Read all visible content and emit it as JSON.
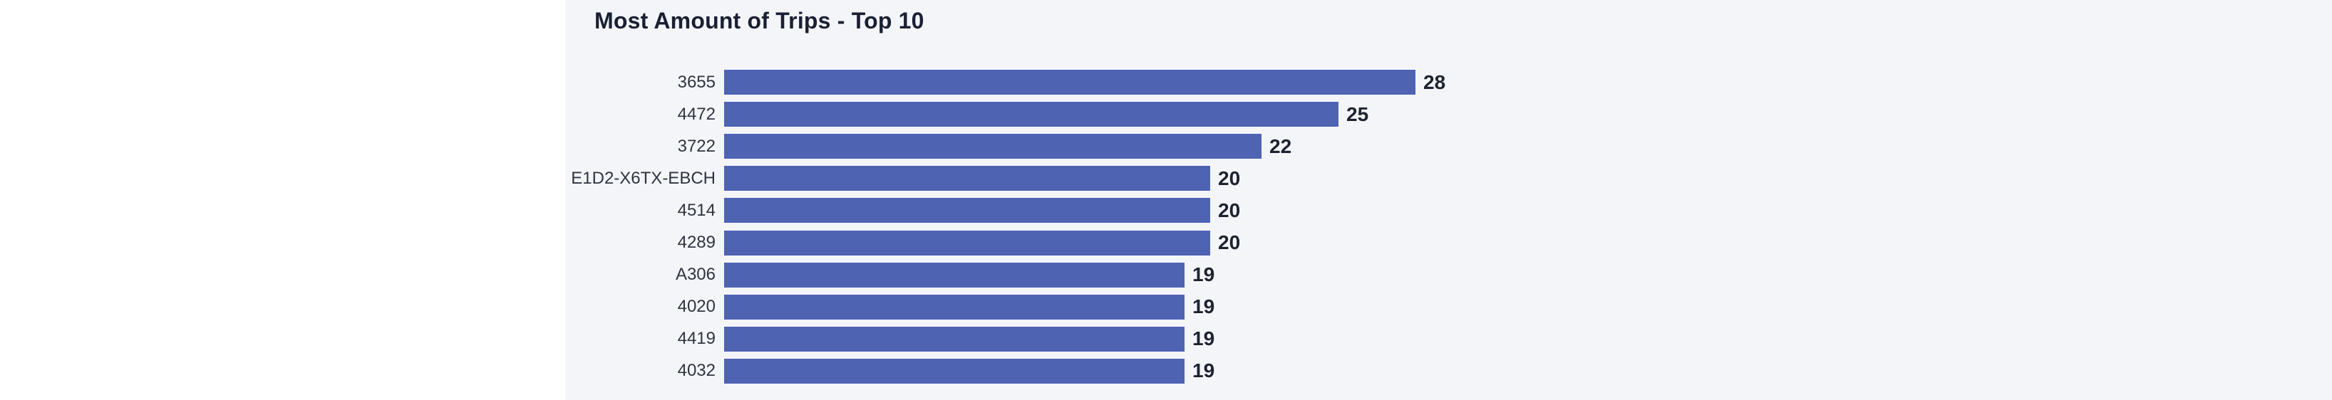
{
  "chart_data": {
    "type": "bar",
    "orientation": "horizontal",
    "title": "Most Amount of Trips - Top 10",
    "categories": [
      "3655",
      "4472",
      "3722",
      "E1D2-X6TX-EBCH",
      "4514",
      "4289",
      "A306",
      "4020",
      "4419",
      "4032"
    ],
    "values": [
      28,
      25,
      22,
      20,
      20,
      20,
      19,
      19,
      19,
      19
    ],
    "xlabel": "",
    "ylabel": "",
    "xlim": [
      0,
      28
    ],
    "grid": false,
    "legend": false,
    "value_labels": "end-of-bar",
    "colors": {
      "bar": "#4f63b3",
      "panel_bg": "#f4f5f9",
      "page_bg": "#ffffff",
      "title_text": "#1a2033",
      "category_text": "#2f3440",
      "value_text": "#1e2330"
    }
  }
}
